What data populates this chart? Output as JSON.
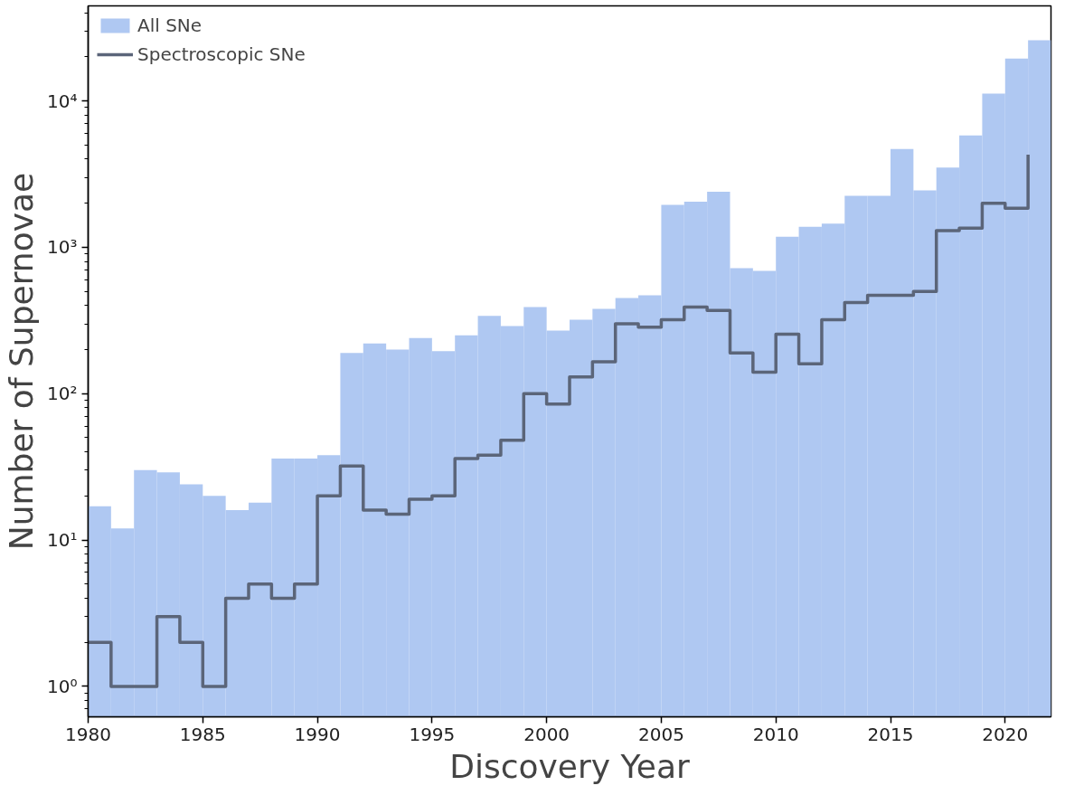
{
  "chart_data": {
    "type": "histogram",
    "xlabel": "Discovery Year",
    "ylabel": "Number of Supernovae",
    "log": "y",
    "legend": "top left",
    "bins": [
      1980,
      1981,
      1982,
      1983,
      1984,
      1985,
      1986,
      1987,
      1988,
      1989,
      1990,
      1991,
      1992,
      1993,
      1994,
      1995,
      1996,
      1997,
      1998,
      1999,
      2000,
      2001,
      2002,
      2003,
      2004,
      2005,
      2006,
      2007,
      2008,
      2009,
      2010,
      2011,
      2012,
      2013,
      2014,
      2015,
      2016,
      2017,
      2018,
      2019,
      2020,
      2021,
      2022
    ],
    "series": [
      {
        "name": "All SNe",
        "color": "#afc8f2",
        "values": [
          17,
          12,
          30,
          29,
          24,
          20,
          16,
          18,
          36,
          36,
          38,
          190,
          220,
          200,
          240,
          195,
          250,
          340,
          290,
          390,
          270,
          320,
          380,
          450,
          470,
          1950,
          2050,
          2400,
          720,
          690,
          1180,
          1380,
          1450,
          2250,
          2250,
          4700,
          2450,
          3500,
          5800,
          11200,
          19500,
          26000
        ]
      },
      {
        "name": "Spectroscopic SNe",
        "type": "step",
        "color": "#5b6579",
        "x": [
          1980,
          1981,
          1982,
          1983,
          1984,
          1985,
          1986,
          1987,
          1988,
          1989,
          1990,
          1991,
          1992,
          1993,
          1994,
          1995,
          1996,
          1997,
          1998,
          1999,
          2000,
          2001,
          2002,
          2003,
          2004,
          2005,
          2006,
          2007,
          2008,
          2009,
          2010,
          2011,
          2012,
          2013,
          2014,
          2015,
          2016,
          2017,
          2018,
          2019,
          2020,
          2021
        ],
        "values": [
          2,
          1,
          1,
          3,
          2,
          1,
          4,
          5,
          4,
          5,
          20,
          32,
          16,
          15,
          19,
          20,
          36,
          38,
          48,
          100,
          85,
          130,
          165,
          300,
          285,
          320,
          390,
          370,
          190,
          140,
          255,
          160,
          320,
          420,
          470,
          470,
          500,
          1300,
          1350,
          2000,
          1850,
          4300
        ]
      }
    ],
    "xlim": [
      1980,
      2022
    ],
    "xticks": [
      1980,
      1985,
      1990,
      1995,
      2000,
      2005,
      2010,
      2015,
      2020
    ],
    "ylim": [
      0.62,
      44600
    ],
    "yticks": [
      {
        "value": 0.7,
        "label": null
      },
      {
        "value": 0.8,
        "label": null
      },
      {
        "value": 0.9,
        "label": null
      },
      {
        "value": 1,
        "label": "10⁰"
      },
      {
        "value": 2,
        "label": null
      },
      {
        "value": 3,
        "label": null
      },
      {
        "value": 4,
        "label": null
      },
      {
        "value": 5,
        "label": null
      },
      {
        "value": 6,
        "label": null
      },
      {
        "value": 7,
        "label": null
      },
      {
        "value": 8,
        "label": null
      },
      {
        "value": 9,
        "label": null
      },
      {
        "value": 10,
        "label": "10¹"
      },
      {
        "value": 20,
        "label": null
      },
      {
        "value": 30,
        "label": null
      },
      {
        "value": 40,
        "label": null
      },
      {
        "value": 50,
        "label": null
      },
      {
        "value": 60,
        "label": null
      },
      {
        "value": 70,
        "label": null
      },
      {
        "value": 80,
        "label": null
      },
      {
        "value": 90,
        "label": null
      },
      {
        "value": 100,
        "label": "10²"
      },
      {
        "value": 200,
        "label": null
      },
      {
        "value": 300,
        "label": null
      },
      {
        "value": 400,
        "label": null
      },
      {
        "value": 500,
        "label": null
      },
      {
        "value": 600,
        "label": null
      },
      {
        "value": 700,
        "label": null
      },
      {
        "value": 800,
        "label": null
      },
      {
        "value": 900,
        "label": null
      },
      {
        "value": 1000,
        "label": "10³"
      },
      {
        "value": 2000,
        "label": null
      },
      {
        "value": 3000,
        "label": null
      },
      {
        "value": 4000,
        "label": null
      },
      {
        "value": 5000,
        "label": null
      },
      {
        "value": 6000,
        "label": null
      },
      {
        "value": 7000,
        "label": null
      },
      {
        "value": 8000,
        "label": null
      },
      {
        "value": 9000,
        "label": null
      },
      {
        "value": 10000,
        "label": "10⁴"
      },
      {
        "value": 20000,
        "label": null
      },
      {
        "value": 30000,
        "label": null
      },
      {
        "value": 40000,
        "label": null
      }
    ],
    "grid": false
  }
}
